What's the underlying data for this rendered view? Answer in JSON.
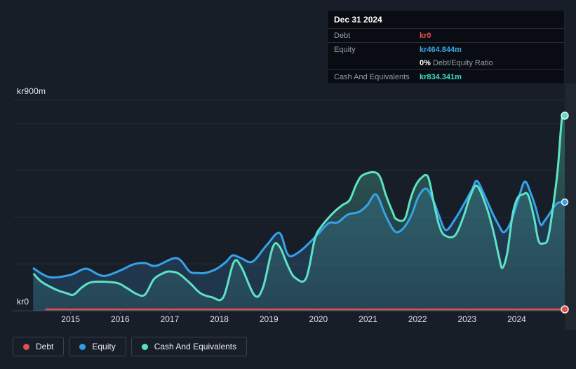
{
  "tooltip": {
    "date": "Dec 31 2024",
    "debt": {
      "label": "Debt",
      "value": "kr0"
    },
    "equity": {
      "label": "Equity",
      "value": "kr464.844m"
    },
    "ratio": {
      "value": "0%",
      "label": "Debt/Equity Ratio"
    },
    "cash": {
      "label": "Cash And Equivalents",
      "value": "kr834.341m"
    }
  },
  "y_axis": {
    "top_label": "kr900m",
    "bottom_label": "kr0"
  },
  "legend": [
    {
      "id": "debt",
      "label": "Debt",
      "color": "#e0514e"
    },
    {
      "id": "equity",
      "label": "Equity",
      "color": "#2f9de8"
    },
    {
      "id": "cash",
      "label": "Cash And Equivalents",
      "color": "#54e0c4"
    }
  ],
  "chart_data": {
    "type": "area",
    "unit": "kr millions (SEK)",
    "x_domain": [
      2013.83,
      2024.97
    ],
    "y_domain": [
      0,
      900
    ],
    "grid_values": [
      900,
      800,
      600,
      400,
      200,
      0
    ],
    "x_tick_years": [
      2015,
      2016,
      2017,
      2018,
      2019,
      2020,
      2021,
      2022,
      2023,
      2024
    ],
    "y_tick_labels": [
      {
        "value": 900,
        "label": "kr900m"
      },
      {
        "value": 0,
        "label": "kr0"
      }
    ],
    "legend_position": "bottom",
    "series": [
      {
        "id": "debt",
        "name": "Debt",
        "color": "#e0514e",
        "line_width": 2.5,
        "points": [
          [
            2014.49,
            0
          ],
          [
            2024.97,
            0
          ]
        ]
      },
      {
        "id": "equity",
        "name": "Equity",
        "color": "#35a2ea",
        "line_width": 3,
        "fill": "rgba(66,148,218,0.20)",
        "points": [
          [
            2014.24,
            183
          ],
          [
            2014.57,
            144
          ],
          [
            2014.99,
            153
          ],
          [
            2015.3,
            180
          ],
          [
            2015.55,
            156
          ],
          [
            2015.72,
            150
          ],
          [
            2016.02,
            174
          ],
          [
            2016.26,
            198
          ],
          [
            2016.5,
            204
          ],
          [
            2016.72,
            192
          ],
          [
            2017.14,
            225
          ],
          [
            2017.4,
            168
          ],
          [
            2017.55,
            162
          ],
          [
            2017.72,
            162
          ],
          [
            2017.95,
            180
          ],
          [
            2018.14,
            210
          ],
          [
            2018.27,
            237
          ],
          [
            2018.44,
            225
          ],
          [
            2018.67,
            210
          ],
          [
            2018.95,
            279
          ],
          [
            2019.21,
            333
          ],
          [
            2019.36,
            249
          ],
          [
            2019.46,
            234
          ],
          [
            2019.65,
            258
          ],
          [
            2019.79,
            285
          ],
          [
            2020.0,
            330
          ],
          [
            2020.21,
            375
          ],
          [
            2020.39,
            378
          ],
          [
            2020.59,
            411
          ],
          [
            2020.82,
            423
          ],
          [
            2020.99,
            453
          ],
          [
            2021.16,
            498
          ],
          [
            2021.33,
            420
          ],
          [
            2021.47,
            360
          ],
          [
            2021.58,
            336
          ],
          [
            2021.73,
            357
          ],
          [
            2021.88,
            411
          ],
          [
            2022.02,
            489
          ],
          [
            2022.18,
            522
          ],
          [
            2022.33,
            465
          ],
          [
            2022.43,
            408
          ],
          [
            2022.57,
            345
          ],
          [
            2022.75,
            390
          ],
          [
            2022.96,
            465
          ],
          [
            2023.1,
            519
          ],
          [
            2023.2,
            555
          ],
          [
            2023.36,
            489
          ],
          [
            2023.5,
            423
          ],
          [
            2023.63,
            369
          ],
          [
            2023.74,
            336
          ],
          [
            2023.88,
            378
          ],
          [
            2024.02,
            468
          ],
          [
            2024.16,
            552
          ],
          [
            2024.28,
            504
          ],
          [
            2024.38,
            444
          ],
          [
            2024.48,
            369
          ],
          [
            2024.56,
            384
          ],
          [
            2024.66,
            414
          ],
          [
            2024.76,
            447
          ],
          [
            2024.84,
            462
          ],
          [
            2024.97,
            464.844
          ]
        ]
      },
      {
        "id": "cash",
        "name": "Cash And Equivalents",
        "color": "#5ce3c5",
        "line_width": 3,
        "fill_gradient": [
          "rgba(92,227,197,0.34)",
          "rgba(92,227,197,0.09)"
        ],
        "points": [
          [
            2014.25,
            159
          ],
          [
            2014.42,
            123
          ],
          [
            2014.71,
            90
          ],
          [
            2014.92,
            75
          ],
          [
            2015.06,
            69
          ],
          [
            2015.24,
            102
          ],
          [
            2015.45,
            123
          ],
          [
            2015.91,
            120
          ],
          [
            2016.12,
            99
          ],
          [
            2016.33,
            72
          ],
          [
            2016.5,
            69
          ],
          [
            2016.68,
            135
          ],
          [
            2016.88,
            162
          ],
          [
            2017.0,
            168
          ],
          [
            2017.18,
            159
          ],
          [
            2017.4,
            120
          ],
          [
            2017.62,
            75
          ],
          [
            2017.85,
            58
          ],
          [
            2018.08,
            57
          ],
          [
            2018.29,
            207
          ],
          [
            2018.44,
            189
          ],
          [
            2018.71,
            66
          ],
          [
            2018.88,
            99
          ],
          [
            2019.08,
            273
          ],
          [
            2019.22,
            273
          ],
          [
            2019.39,
            189
          ],
          [
            2019.53,
            141
          ],
          [
            2019.75,
            138
          ],
          [
            2019.93,
            309
          ],
          [
            2020.07,
            363
          ],
          [
            2020.21,
            399
          ],
          [
            2020.35,
            429
          ],
          [
            2020.49,
            453
          ],
          [
            2020.63,
            474
          ],
          [
            2020.77,
            543
          ],
          [
            2020.91,
            582
          ],
          [
            2021.2,
            585
          ],
          [
            2021.37,
            489
          ],
          [
            2021.5,
            420
          ],
          [
            2021.57,
            392
          ],
          [
            2021.74,
            392
          ],
          [
            2021.86,
            480
          ],
          [
            2021.95,
            531
          ],
          [
            2022.07,
            567
          ],
          [
            2022.21,
            573
          ],
          [
            2022.33,
            459
          ],
          [
            2022.43,
            369
          ],
          [
            2022.54,
            324
          ],
          [
            2022.75,
            321
          ],
          [
            2022.92,
            399
          ],
          [
            2023.06,
            489
          ],
          [
            2023.2,
            534
          ],
          [
            2023.39,
            444
          ],
          [
            2023.53,
            339
          ],
          [
            2023.64,
            234
          ],
          [
            2023.71,
            183
          ],
          [
            2023.81,
            249
          ],
          [
            2023.92,
            414
          ],
          [
            2024.02,
            483
          ],
          [
            2024.13,
            498
          ],
          [
            2024.23,
            495
          ],
          [
            2024.35,
            399
          ],
          [
            2024.44,
            300
          ],
          [
            2024.54,
            288
          ],
          [
            2024.63,
            309
          ],
          [
            2024.73,
            438
          ],
          [
            2024.83,
            609
          ],
          [
            2024.91,
            819
          ],
          [
            2024.97,
            834.341
          ]
        ]
      }
    ]
  }
}
